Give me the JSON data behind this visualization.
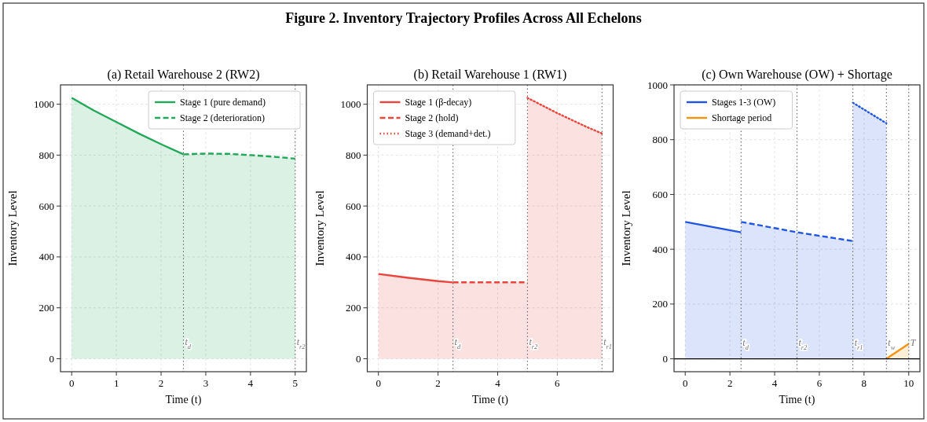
{
  "chart_data": [
    {
      "type": "line",
      "title": "(a) Retail Warehouse 2 (RW2)",
      "xlabel": "Time (t)",
      "ylabel": "Inventory Level",
      "annotations": [
        "Figure 2. Inventory Trajectory Profiles Across All Echelons"
      ],
      "xlim": [
        -0.25,
        5.25
      ],
      "ylim": [
        -51,
        1076
      ],
      "xticks": [
        0,
        1,
        2,
        3,
        4,
        5
      ],
      "yticks": [
        0,
        200,
        400,
        600,
        800,
        1000
      ],
      "grid": true,
      "legend": "top right",
      "ref_lines": [
        {
          "axis": "x",
          "value": 2.5,
          "label": "t$_{d}$",
          "color": "#666666",
          "line_style": "dotted"
        },
        {
          "axis": "x",
          "value": 5,
          "label": "t$_{r2}$",
          "color": "#666666",
          "line_style": "dotted"
        }
      ],
      "series": [
        {
          "name": "Stage 1 (pure demand)",
          "type": "area",
          "color": "#22a85a",
          "line_style": "solid",
          "x": [
            0,
            0.5,
            1,
            1.5,
            2,
            2.5
          ],
          "values": [
            1025,
            975,
            930,
            885,
            843,
            803
          ]
        },
        {
          "name": "Stage 2 (deterioration)",
          "type": "area",
          "color": "#22a85a",
          "line_style": "dashed",
          "x": [
            2.5,
            3,
            3.5,
            4,
            4.5,
            5
          ],
          "values": [
            803,
            806,
            805,
            800,
            794,
            786
          ]
        }
      ]
    },
    {
      "type": "line",
      "title": "(b) Retail Warehouse 1 (RW1)",
      "xlabel": "Time (t)",
      "ylabel": "Inventory Level",
      "xlim": [
        -0.375,
        7.875
      ],
      "ylim": [
        -51,
        1076
      ],
      "xticks": [
        0,
        2,
        4,
        6
      ],
      "yticks": [
        0,
        200,
        400,
        600,
        800,
        1000
      ],
      "grid": true,
      "legend": "top left",
      "ref_lines": [
        {
          "axis": "x",
          "value": 2.5,
          "label": "t$_{d}$",
          "color": "#666666",
          "line_style": "dotted"
        },
        {
          "axis": "x",
          "value": 5,
          "label": "t$_{r2}$",
          "color": "#666666",
          "line_style": "dotted"
        },
        {
          "axis": "x",
          "value": 7.5,
          "label": "t$_{r1}$",
          "color": "#666666",
          "line_style": "dotted"
        }
      ],
      "series": [
        {
          "name": "Stage 1 (β-decay)",
          "type": "area",
          "color": "#e8453c",
          "line_style": "solid",
          "x": [
            0,
            1,
            2,
            2.5
          ],
          "values": [
            333,
            318,
            305,
            300
          ]
        },
        {
          "name": "Stage 2 (hold)",
          "type": "area",
          "color": "#e8453c",
          "line_style": "dashed",
          "x": [
            2.5,
            5
          ],
          "values": [
            300,
            300
          ]
        },
        {
          "name": "Stage 3 (demand+det.)",
          "type": "area",
          "color": "#e8453c",
          "line_style": "dotted",
          "x": [
            5,
            6,
            7,
            7.5
          ],
          "values": [
            1025,
            965,
            910,
            885
          ]
        }
      ]
    },
    {
      "type": "line",
      "title": "(c) Own Warehouse (OW) + Shortage",
      "xlabel": "Time (t)",
      "ylabel": "Inventory Level",
      "xlim": [
        -0.5,
        10.5
      ],
      "ylim": [
        -47,
        1000
      ],
      "xticks": [
        0,
        2,
        4,
        6,
        8,
        10
      ],
      "yticks": [
        0,
        200,
        400,
        600,
        800,
        1000
      ],
      "grid": true,
      "legend": "top left",
      "ref_lines": [
        {
          "axis": "x",
          "value": 2.5,
          "label": "t$_{d}$",
          "color": "#666666",
          "line_style": "dotted"
        },
        {
          "axis": "x",
          "value": 5,
          "label": "t$_{r2}$",
          "color": "#666666",
          "line_style": "dotted"
        },
        {
          "axis": "x",
          "value": 7.5,
          "label": "t$_{r1}$",
          "color": "#666666",
          "line_style": "dotted"
        },
        {
          "axis": "x",
          "value": 9,
          "label": "t$_{w}$",
          "color": "#666666",
          "line_style": "dotted"
        },
        {
          "axis": "x",
          "value": 10,
          "label": "T",
          "color": "#666666",
          "line_style": "dotted"
        },
        {
          "axis": "y",
          "value": 0,
          "color": "#000000",
          "line_style": "solid"
        }
      ],
      "series": [
        {
          "name": "Stages 1-3 (OW)",
          "type": "area",
          "color": "#1f55e0",
          "line_style": "solid",
          "x": [
            0,
            2.5
          ],
          "values": [
            500,
            462
          ]
        },
        {
          "type": "area",
          "color": "#1f55e0",
          "line_style": "dashed",
          "x": [
            2.5,
            5,
            7.5
          ],
          "values": [
            500,
            462,
            430
          ]
        },
        {
          "type": "area",
          "color": "#1f55e0",
          "line_style": "dotted",
          "x": [
            7.5,
            9
          ],
          "values": [
            935,
            860
          ]
        },
        {
          "name": "Shortage period",
          "type": "area",
          "color": "#f5930f",
          "line_style": "solid",
          "x": [
            9,
            10
          ],
          "values": [
            0,
            55
          ]
        }
      ]
    }
  ]
}
